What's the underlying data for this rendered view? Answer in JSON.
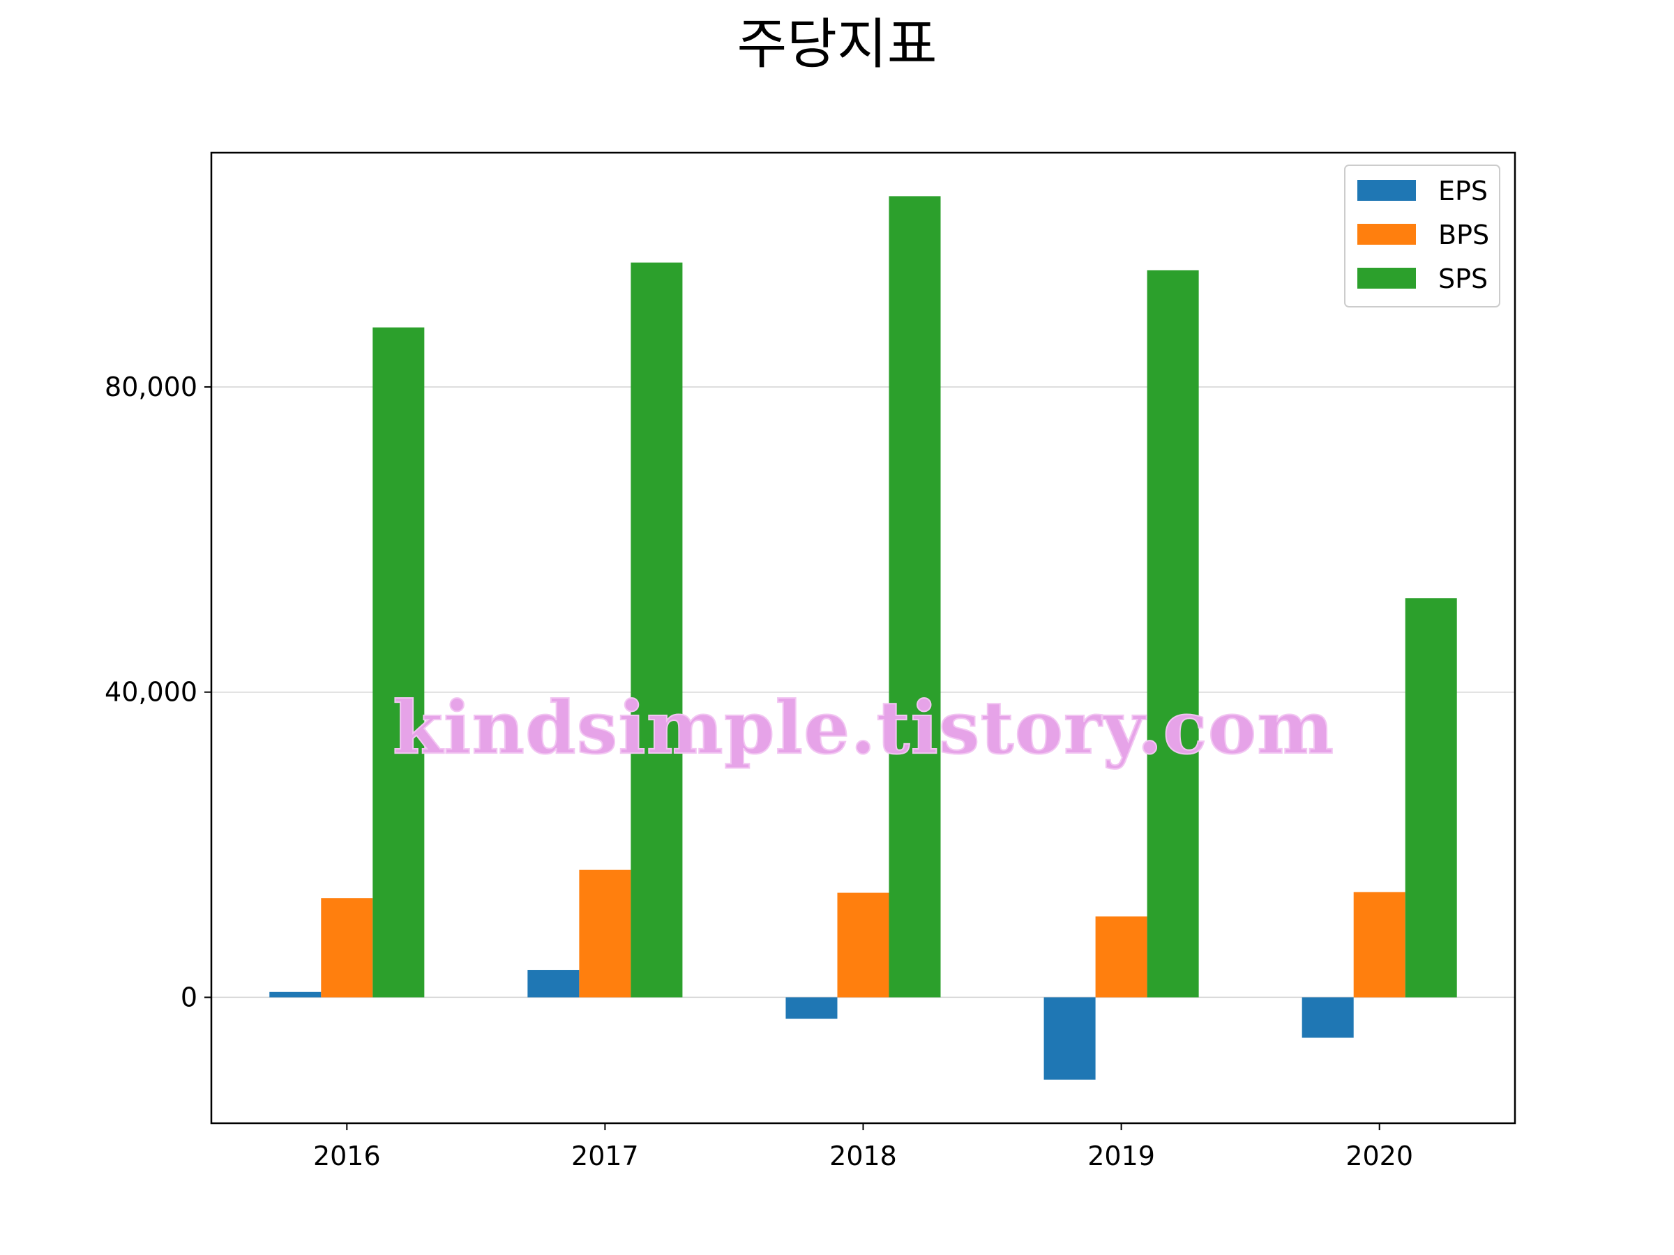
{
  "chart_data": {
    "type": "bar",
    "title": "주당지표",
    "xlabel": "",
    "ylabel": "",
    "categories": [
      "2016",
      "2017",
      "2018",
      "2019",
      "2020"
    ],
    "series": [
      {
        "name": "EPS",
        "color": "#1f77b4",
        "values": [
          700,
          3600,
          -2800,
          -10800,
          -5300
        ]
      },
      {
        "name": "BPS",
        "color": "#ff7f0e",
        "values": [
          13000,
          16700,
          13700,
          10600,
          13800
        ]
      },
      {
        "name": "SPS",
        "color": "#2ca02c",
        "values": [
          87800,
          96300,
          105000,
          95300,
          52300
        ]
      }
    ],
    "ylim": [
      -16500,
      110700
    ],
    "yticks": [
      0,
      40000,
      80000
    ],
    "ytick_labels": [
      "0",
      "40,000",
      "80,000"
    ],
    "grid": "horizontal",
    "legend_position": "upper right"
  },
  "watermark": "kindsimple.tistory.com"
}
